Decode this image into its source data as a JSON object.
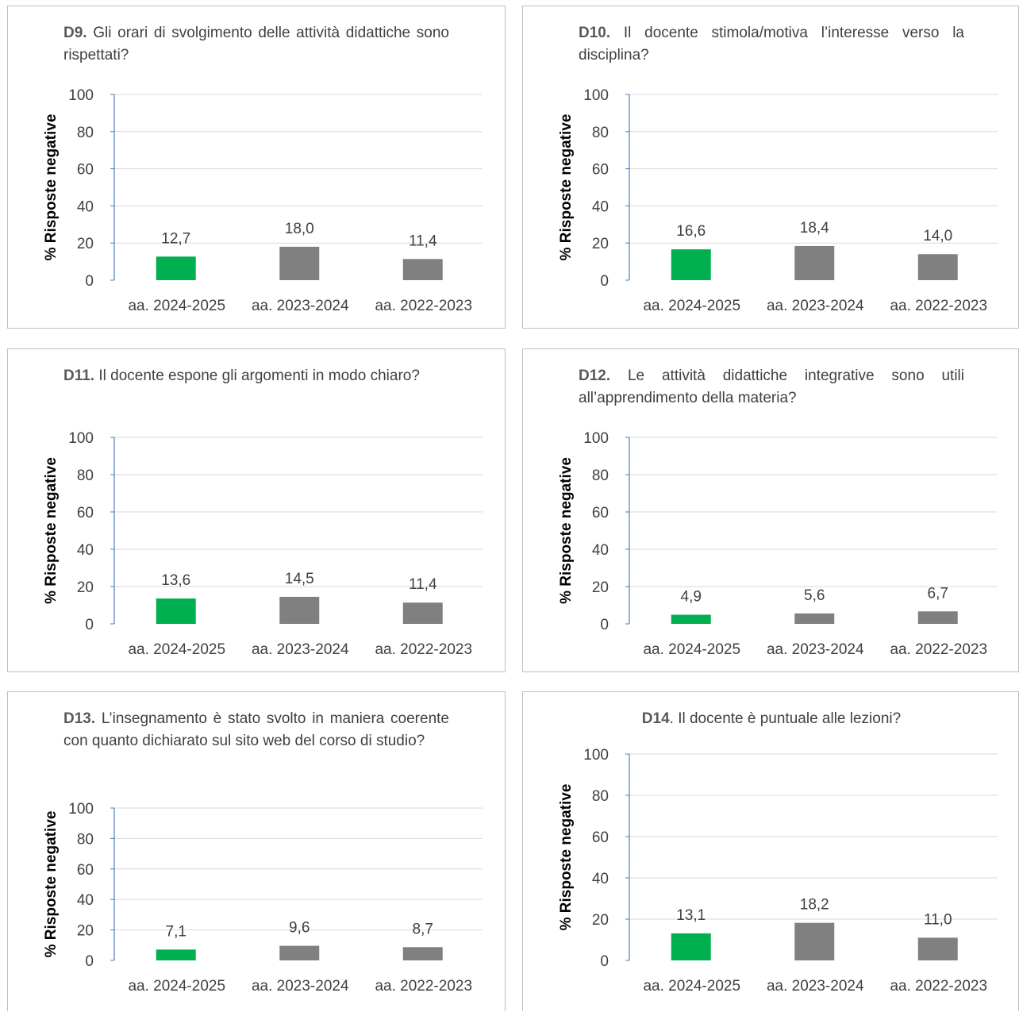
{
  "colors": {
    "current": "#00b050",
    "previous": "#808080",
    "grid": "#d9d9d9",
    "axis": "#4a7ebb"
  },
  "chart_data": [
    {
      "type": "bar",
      "title_code": "D9.",
      "title_text": " Gli orari di svolgimento delle attività didattiche sono rispettati?",
      "ylabel": "% Risposte negative",
      "ylim": [
        0,
        100
      ],
      "yticks": [
        "0",
        "20",
        "40",
        "60",
        "80",
        "100"
      ],
      "categories": [
        "aa. 2024-2025",
        "aa. 2023-2024",
        "aa. 2022-2023"
      ],
      "values": [
        12.7,
        18.0,
        11.4
      ],
      "value_labels": [
        "12,7",
        "18,0",
        "11,4"
      ],
      "grid": true
    },
    {
      "type": "bar",
      "title_code": "D10.",
      "title_text": " Il docente stimola/motiva l’interesse verso la disciplina?",
      "ylabel": "% Risposte negative",
      "ylim": [
        0,
        100
      ],
      "yticks": [
        "0",
        "20",
        "40",
        "60",
        "80",
        "100"
      ],
      "categories": [
        "aa. 2024-2025",
        "aa. 2023-2024",
        "aa. 2022-2023"
      ],
      "values": [
        16.6,
        18.4,
        14.0
      ],
      "value_labels": [
        "16,6",
        "18,4",
        "14,0"
      ],
      "grid": true
    },
    {
      "type": "bar",
      "title_code": "D11.",
      "title_text": " Il docente espone gli argomenti in modo chiaro?",
      "ylabel": "% Risposte negative",
      "ylim": [
        0,
        100
      ],
      "yticks": [
        "0",
        "20",
        "40",
        "60",
        "80",
        "100"
      ],
      "categories": [
        "aa. 2024-2025",
        "aa. 2023-2024",
        "aa. 2022-2023"
      ],
      "values": [
        13.6,
        14.5,
        11.4
      ],
      "value_labels": [
        "13,6",
        "14,5",
        "11,4"
      ],
      "grid": true
    },
    {
      "type": "bar",
      "title_code": "D12.",
      "title_text": " Le attività didattiche integrative sono utili all’apprendimento della materia?",
      "ylabel": "% Risposte negative",
      "ylim": [
        0,
        100
      ],
      "yticks": [
        "0",
        "20",
        "40",
        "60",
        "80",
        "100"
      ],
      "categories": [
        "aa. 2024-2025",
        "aa. 2023-2024",
        "aa. 2022-2023"
      ],
      "values": [
        4.9,
        5.6,
        6.7
      ],
      "value_labels": [
        "4,9",
        "5,6",
        "6,7"
      ],
      "grid": true
    },
    {
      "type": "bar",
      "title_code": "D13.",
      "title_text": " L’insegnamento è stato svolto in maniera coerente con quanto dichiarato sul sito web del corso di studio?",
      "ylabel": "% Risposte negative",
      "ylim": [
        0,
        100
      ],
      "yticks": [
        "0",
        "20",
        "40",
        "60",
        "80",
        "100"
      ],
      "categories": [
        "aa. 2024-2025",
        "aa. 2023-2024",
        "aa. 2022-2023"
      ],
      "values": [
        7.1,
        9.6,
        8.7
      ],
      "value_labels": [
        "7,1",
        "9,6",
        "8,7"
      ],
      "grid": true
    },
    {
      "type": "bar",
      "title_code": "D14",
      "title_text": ". Il docente è puntuale alle lezioni?",
      "ylabel": "% Risposte negative",
      "ylim": [
        0,
        100
      ],
      "yticks": [
        "0",
        "20",
        "40",
        "60",
        "80",
        "100"
      ],
      "categories": [
        "aa. 2024-2025",
        "aa. 2023-2024",
        "aa. 2022-2023"
      ],
      "values": [
        13.1,
        18.2,
        11.0
      ],
      "value_labels": [
        "13,1",
        "18,2",
        "11,0"
      ],
      "grid": true
    }
  ]
}
